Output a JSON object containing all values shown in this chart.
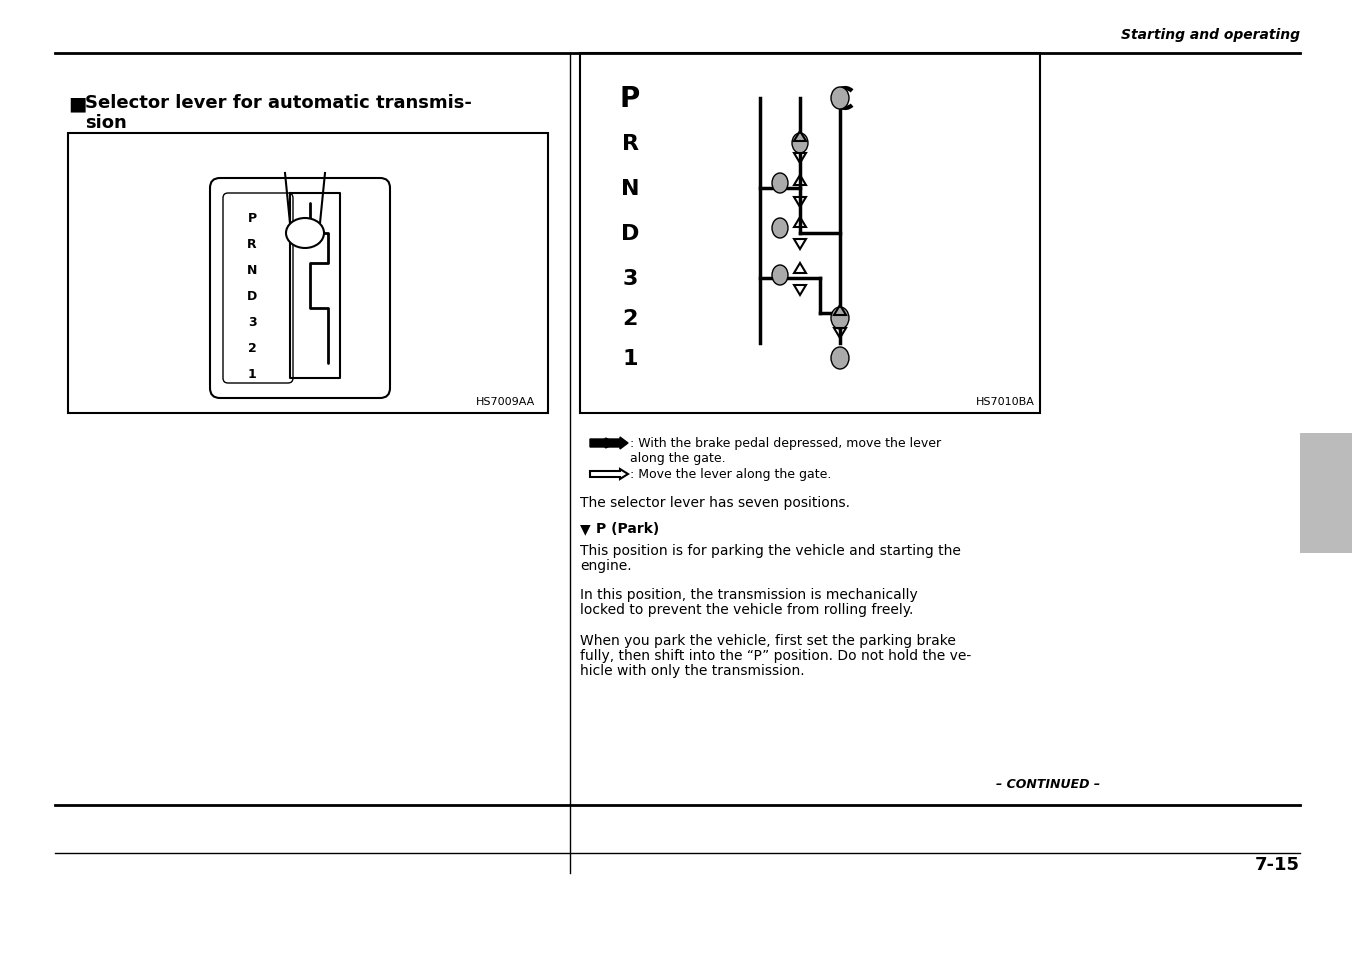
{
  "page_width": 13.52,
  "page_height": 9.54,
  "bg_color": "#ffffff",
  "header_text": "Starting and operating",
  "header_italic": true,
  "title_black_square": "■",
  "title_text": "Selector lever for automatic transmis-\nsion",
  "left_image_label": "HS7009AA",
  "right_image_label": "HS7010BA",
  "gear_positions": [
    "P",
    "R",
    "N",
    "D",
    "3",
    "2",
    "1"
  ],
  "arrow_legend_1": ": With the brake pedal depressed, move the lever\n   along the gate.",
  "arrow_legend_2": ": Move the lever along the gate.",
  "selector_positions_text": "The selector lever has seven positions.",
  "park_header": "P (Park)",
  "park_text1": "This position is for parking the vehicle and starting the\nengine.",
  "park_text2": "In this position, the transmission is mechanically\nlocked to prevent the vehicle from rolling freely.",
  "park_text3": "When you park the vehicle, first set the parking brake\nfully, then shift into the “P” position. Do not hold the ve-\nhicle with only the transmission.",
  "continued_text": "– CONTINUED –",
  "page_number": "7-15",
  "divider_color": "#000000",
  "text_color": "#000000",
  "gray_color": "#999999",
  "light_gray": "#cccccc"
}
